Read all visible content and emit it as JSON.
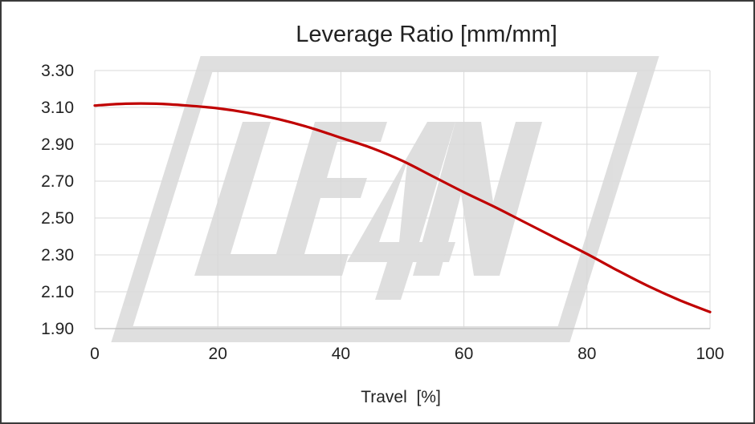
{
  "chart_data": {
    "type": "line",
    "title": "Leverage Ratio [mm/mm]",
    "xlabel": "Travel  [%]",
    "ylabel": "",
    "xlim": [
      0,
      100
    ],
    "ylim": [
      1.9,
      3.3
    ],
    "x_ticks": [
      0,
      20,
      40,
      60,
      80,
      100
    ],
    "x_tick_labels": [
      "0",
      "20",
      "40",
      "60",
      "80",
      "100"
    ],
    "y_ticks": [
      1.9,
      2.1,
      2.3,
      2.5,
      2.7,
      2.9,
      3.1,
      3.3
    ],
    "y_tick_labels": [
      "1.90",
      "2.10",
      "2.30",
      "2.50",
      "2.70",
      "2.90",
      "3.10",
      "3.30"
    ],
    "grid": true,
    "legend": "none",
    "watermark": "LEAN",
    "series": [
      {
        "name": "Leverage Ratio",
        "color": "#c00000",
        "x": [
          0,
          5,
          10,
          15,
          20,
          25,
          30,
          35,
          40,
          45,
          50,
          55,
          60,
          65,
          70,
          75,
          80,
          85,
          90,
          95,
          100
        ],
        "y": [
          3.11,
          3.12,
          3.12,
          3.11,
          3.095,
          3.07,
          3.035,
          2.99,
          2.935,
          2.88,
          2.81,
          2.725,
          2.64,
          2.56,
          2.475,
          2.39,
          2.305,
          2.215,
          2.13,
          2.055,
          1.99
        ]
      }
    ]
  }
}
